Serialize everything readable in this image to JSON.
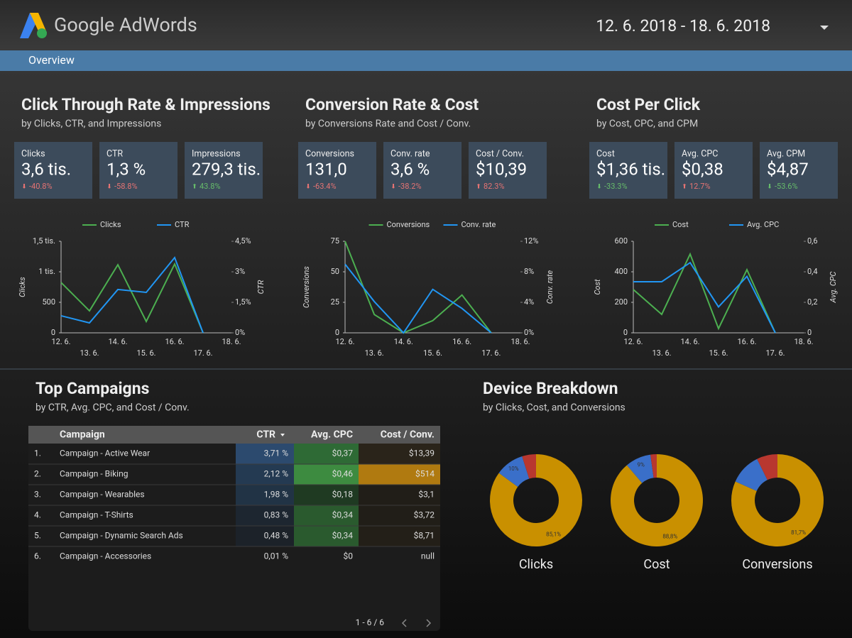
{
  "header": {
    "brand": "Google AdWords",
    "date_range": "12. 6. 2018 - 18. 6. 2018"
  },
  "tab": "Overview",
  "sections": [
    {
      "title": "Click Through Rate & Impressions",
      "subtitle": "by Clicks, CTR, and Impressions",
      "kpis": [
        {
          "label": "Clicks",
          "value": "3,6 tis.",
          "change": "-40.8%",
          "color": "#e57373"
        },
        {
          "label": "CTR",
          "value": "1,3 %",
          "change": "-58.8%",
          "color": "#e57373"
        },
        {
          "label": "Impressions",
          "value": "279,3 tis.",
          "change": "43.8%",
          "color": "#66bb6a"
        }
      ],
      "chart": {
        "type": "line",
        "categories": [
          "12. 6.",
          "13. 6.",
          "14. 6.",
          "15. 6.",
          "16. 6.",
          "17. 6.",
          "18. 6."
        ],
        "ylabel": "Clicks",
        "y2label": "CTR",
        "ylim": [
          0,
          1500
        ],
        "yticks": [
          0,
          500,
          {
            "value": 1000,
            "label": "1 tis."
          },
          {
            "value": 1500,
            "label": "1,5 tis."
          }
        ],
        "y2lim": [
          0,
          4.5
        ],
        "y2ticks": [
          {
            "value": 0,
            "label": "0%"
          },
          {
            "value": 1.5,
            "label": "1,5%"
          },
          {
            "value": 3,
            "label": "3%"
          },
          {
            "value": 4.5,
            "label": "4,5%"
          }
        ],
        "series": [
          {
            "name": "Clicks",
            "color": "#4caf50",
            "values": [
              825,
              360,
              1116,
              186,
              1128,
              0,
              null
            ]
          },
          {
            "name": "CTR",
            "color": "#2196f3",
            "axis": "y2",
            "values": [
              0.84,
              0.49,
              2.13,
              1.99,
              3.7,
              0,
              null
            ]
          }
        ]
      }
    },
    {
      "title": "Conversion Rate & Cost",
      "subtitle": "by Conversions Rate and Cost / Conv.",
      "kpis": [
        {
          "label": "Conversions",
          "value": "131,0",
          "change": "-63.4%",
          "color": "#e57373"
        },
        {
          "label": "Conv. rate",
          "value": "3,6 %",
          "change": "-38.2%",
          "color": "#e57373"
        },
        {
          "label": "Cost / Conv.",
          "value": "$10,39",
          "change": "82.3%",
          "color": "#e57373"
        }
      ],
      "chart": {
        "type": "line",
        "categories": [
          "12. 6.",
          "13. 6.",
          "14. 6.",
          "15. 6.",
          "16. 6.",
          "17. 6.",
          "18. 6."
        ],
        "ylabel": "Conversions",
        "y2label": "Conv. rate",
        "ylim": [
          0,
          75
        ],
        "yticks": [
          0,
          25,
          50,
          75
        ],
        "y2lim": [
          0,
          12
        ],
        "y2ticks": [
          {
            "value": 0,
            "label": "0%"
          },
          {
            "value": 4,
            "label": "4%"
          },
          {
            "value": 8,
            "label": "8%"
          },
          {
            "value": 12,
            "label": "12%"
          }
        ],
        "series": [
          {
            "name": "Conversions",
            "color": "#4caf50",
            "values": [
              75,
              15,
              0,
              10,
              31,
              0,
              null
            ]
          },
          {
            "name": "Conv. rate",
            "color": "#2196f3",
            "axis": "y2",
            "values": [
              9.0,
              4.1,
              0,
              5.7,
              3.2,
              0,
              null
            ]
          }
        ]
      }
    },
    {
      "title": "Cost Per Click",
      "subtitle": "by Cost, CPC, and CPM",
      "kpis": [
        {
          "label": "Cost",
          "value": "$1,36 tis.",
          "change": "-33.3%",
          "color": "#66bb6a"
        },
        {
          "label": "Avg. CPC",
          "value": "$0,38",
          "change": "12.7%",
          "color": "#e57373"
        },
        {
          "label": "Avg. CPM",
          "value": "$4,87",
          "change": "-53.6%",
          "color": "#66bb6a"
        }
      ],
      "chart": {
        "type": "line",
        "categories": [
          "12. 6.",
          "13. 6.",
          "14. 6.",
          "15. 6.",
          "16. 6.",
          "17. 6.",
          "18. 6."
        ],
        "ylabel": "Cost",
        "y2label": "Avg. CPC",
        "ylim": [
          0,
          600
        ],
        "yticks": [
          0,
          200,
          400,
          600
        ],
        "y2lim": [
          0,
          0.6
        ],
        "y2ticks": [
          0,
          {
            "value": 0.2,
            "label": "0,2"
          },
          {
            "value": 0.4,
            "label": "0,4"
          },
          {
            "value": 0.6,
            "label": "0,6"
          }
        ],
        "series": [
          {
            "name": "Cost",
            "color": "#4caf50",
            "values": [
              284,
              121,
              516,
              28,
              414,
              0,
              null
            ]
          },
          {
            "name": "Avg. CPC",
            "color": "#2196f3",
            "axis": "y2",
            "values": [
              0.335,
              0.335,
              0.46,
              0.17,
              0.37,
              0,
              null
            ]
          }
        ]
      }
    }
  ],
  "campaigns": {
    "title": "Top Campaigns",
    "subtitle": "by CTR, Avg. CPC, and Cost / Conv.",
    "columns": [
      "Campaign",
      "CTR",
      "Avg. CPC",
      "Cost / Conv."
    ],
    "rows": [
      [
        "1.",
        "Campaign - Active Wear",
        "3,71 %",
        "$0,37",
        "$13,39"
      ],
      [
        "2.",
        "Campaign - Biking",
        "2,12 %",
        "$0,46",
        "$514"
      ],
      [
        "3.",
        "Campaign - Wearables",
        "1,98 %",
        "$0,18",
        "$3,1"
      ],
      [
        "4.",
        "Campaign - T-Shirts",
        "0,83 %",
        "$0,34",
        "$3,72"
      ],
      [
        "5.",
        "Campaign - Dynamic Search Ads",
        "0,48 %",
        "$0,34",
        "$8,71"
      ],
      [
        "6.",
        "Campaign - Accessories",
        "0,01 %",
        "$0",
        "null"
      ]
    ],
    "cell_colors": [
      [
        "#2c4a6e",
        "#2e6a35",
        "#2a241a"
      ],
      [
        "#243a52",
        "#3d8b40",
        "#b07a10"
      ],
      [
        "#213345",
        "#1f3a22",
        "#211e18"
      ],
      [
        "#1d2630",
        "#2a5a2e",
        "#211e18"
      ],
      [
        "#1c2229",
        "#2a5a2e",
        "#231f18"
      ],
      [
        null,
        null,
        null
      ]
    ],
    "pagination": "1 - 6 / 6"
  },
  "devices": {
    "title": "Device Breakdown",
    "subtitle": "by Clicks, Cost, and Conversions",
    "colors": [
      "#c99000",
      "#3a6fc9",
      "#b8372f"
    ],
    "charts": [
      {
        "type": "pie",
        "label": "Clicks",
        "values": [
          85.1,
          10,
          4.9
        ],
        "value_labels": [
          "85,1%",
          "10%",
          null
        ]
      },
      {
        "type": "pie",
        "label": "Cost",
        "values": [
          88.8,
          9,
          2.2
        ],
        "value_labels": [
          "88,8%",
          "9%",
          null
        ]
      },
      {
        "type": "pie",
        "label": "Conversions",
        "values": [
          81.7,
          11,
          7.3
        ],
        "value_labels": [
          "81,7%",
          null,
          null
        ]
      }
    ]
  }
}
